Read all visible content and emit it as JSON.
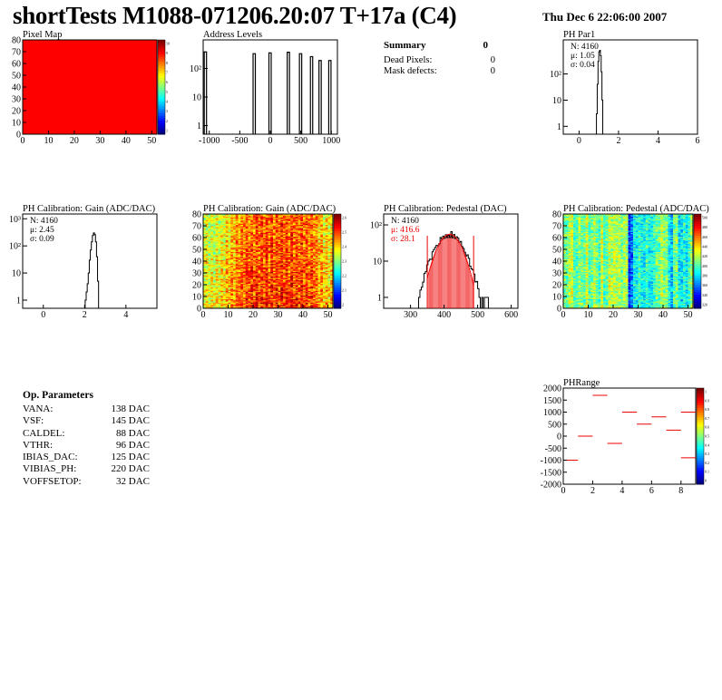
{
  "header": {
    "title": "shortTests M1088-071206.20:07 T+17a (C4)",
    "date": "Thu Dec  6 22:06:00 2007"
  },
  "summary": {
    "title": "Summary",
    "title_value": "0",
    "rows": [
      {
        "label": "Dead Pixels:",
        "value": "0"
      },
      {
        "label": "Mask defects:",
        "value": "0"
      }
    ]
  },
  "op_params": {
    "title": "Op. Parameters",
    "rows": [
      {
        "name": "VANA:",
        "value": "138 DAC"
      },
      {
        "name": "VSF:",
        "value": "145 DAC"
      },
      {
        "name": "CALDEL:",
        "value": "88 DAC"
      },
      {
        "name": "VTHR:",
        "value": "96 DAC"
      },
      {
        "name": "IBIAS_DAC:",
        "value": "125 DAC"
      },
      {
        "name": "VIBIAS_PH:",
        "value": "220 DAC"
      },
      {
        "name": "VOFFSETOP:",
        "value": "32 DAC"
      }
    ]
  },
  "colors": {
    "hist_line": "#000000",
    "fit_red": "#ee0000",
    "map_red": "#ff0000"
  },
  "chart_data": [
    {
      "id": "pixel_map",
      "type": "heatmap",
      "title": "Pixel Map",
      "xlim": [
        0,
        52
      ],
      "ylim": [
        0,
        80
      ],
      "x_ticks": [
        0,
        10,
        20,
        30,
        40,
        50
      ],
      "y_ticks": [
        0,
        10,
        20,
        30,
        40,
        50,
        60,
        70,
        80
      ],
      "z_ticks": [
        "10",
        "9",
        "8",
        "7",
        "6",
        "5",
        "4",
        "3",
        "2",
        "1"
      ],
      "fill_value": 10
    },
    {
      "id": "address_levels",
      "type": "bar",
      "title": "Address Levels",
      "xlim": [
        -1100,
        1100
      ],
      "ylim_log": [
        0.5,
        1000
      ],
      "x_ticks": [
        "-1000",
        "-500",
        "0",
        "500",
        "1000"
      ],
      "y_ticks": [
        {
          "v": 1,
          "label": "1"
        },
        {
          "v": 10,
          "label": "10"
        },
        {
          "v": 100,
          "label": "10²"
        }
      ],
      "peaks": [
        {
          "x": -1060,
          "h": 380
        },
        {
          "x": -260,
          "h": 330
        },
        {
          "x": 0,
          "h": 350
        },
        {
          "x": 300,
          "h": 370
        },
        {
          "x": 500,
          "h": 330
        },
        {
          "x": 680,
          "h": 260
        },
        {
          "x": 820,
          "h": 190
        },
        {
          "x": 980,
          "h": 190
        }
      ]
    },
    {
      "id": "ph_par1",
      "type": "bar",
      "title": "PH Par1",
      "xlim": [
        -0.8,
        6
      ],
      "ylim_log": [
        0.5,
        2000
      ],
      "x_ticks": [
        "0",
        "2",
        "4",
        "6"
      ],
      "y_ticks": [
        {
          "v": 1,
          "label": "1"
        },
        {
          "v": 10,
          "label": "10"
        },
        {
          "v": 100,
          "label": "10²"
        }
      ],
      "stats": [
        "N: 4160",
        "μ: 1.05",
        "σ: 0.04"
      ],
      "bins": [
        [
          0.86,
          0.5
        ],
        [
          0.9,
          3
        ],
        [
          0.94,
          40
        ],
        [
          0.98,
          300
        ],
        [
          1.02,
          700
        ],
        [
          1.06,
          800
        ],
        [
          1.1,
          500
        ],
        [
          1.14,
          120
        ],
        [
          1.18,
          10
        ],
        [
          1.22,
          0.5
        ]
      ]
    },
    {
      "id": "gain_dist",
      "type": "bar",
      "title": "PH Calibration: Gain (ADC/DAC)",
      "xlim": [
        -1,
        5.5
      ],
      "ylim_log": [
        0.5,
        1500
      ],
      "x_ticks": [
        "0",
        "2",
        "4"
      ],
      "y_ticks": [
        {
          "v": 1,
          "label": "1"
        },
        {
          "v": 10,
          "label": "10"
        },
        {
          "v": 100,
          "label": "10²"
        },
        {
          "v": 1000,
          "label": "10³"
        }
      ],
      "stats": [
        "N: 4160",
        "μ: 2.45",
        "σ: 0.09"
      ],
      "bins": [
        [
          2.0,
          0.5
        ],
        [
          2.05,
          1
        ],
        [
          2.1,
          2
        ],
        [
          2.15,
          4
        ],
        [
          2.2,
          10
        ],
        [
          2.25,
          30
        ],
        [
          2.3,
          70
        ],
        [
          2.35,
          140
        ],
        [
          2.4,
          240
        ],
        [
          2.45,
          300
        ],
        [
          2.5,
          260
        ],
        [
          2.55,
          140
        ],
        [
          2.6,
          40
        ],
        [
          2.65,
          5
        ],
        [
          2.7,
          0.5
        ]
      ]
    },
    {
      "id": "gain_map",
      "type": "heatmap",
      "title": "PH Calibration: Gain (ADC/DAC)",
      "xlim": [
        0,
        52
      ],
      "ylim": [
        0,
        80
      ],
      "x_ticks": [
        0,
        10,
        20,
        30,
        40,
        50
      ],
      "y_ticks": [
        0,
        10,
        20,
        30,
        40,
        50,
        60,
        70,
        80
      ],
      "z_ticks": [
        "2.6",
        "2.5",
        "2.4",
        "2.3",
        "2.2",
        "2.1",
        "2"
      ]
    },
    {
      "id": "pedestal_dist",
      "type": "bar",
      "title": "PH Calibration: Pedestal (DAC)",
      "xlim": [
        220,
        620
      ],
      "ylim_log": [
        0.5,
        200
      ],
      "x_ticks": [
        "300",
        "400",
        "500",
        "600"
      ],
      "y_ticks": [
        {
          "v": 1,
          "label": "1"
        },
        {
          "v": 10,
          "label": "10"
        },
        {
          "v": 100,
          "label": "10²"
        }
      ],
      "stats": [
        "N: 4160",
        "μ: 416.6",
        "σ: 28.1"
      ],
      "mean": 416.6,
      "sigma": 28.1,
      "cut_lines": [
        350,
        488
      ]
    },
    {
      "id": "pedestal_map",
      "type": "heatmap",
      "title": "PH Calibration: Pedestal (ADC/DAC)",
      "xlim": [
        0,
        52
      ],
      "ylim": [
        0,
        80
      ],
      "x_ticks": [
        0,
        10,
        20,
        30,
        40,
        50
      ],
      "y_ticks": [
        0,
        10,
        20,
        30,
        40,
        50,
        60,
        70,
        80
      ],
      "z_ticks": [
        "500",
        "480",
        "460",
        "440",
        "420",
        "400",
        "380",
        "360",
        "340",
        "320"
      ]
    },
    {
      "id": "ph_range",
      "type": "scatter",
      "title": "PHRange",
      "xlim": [
        0,
        9
      ],
      "ylim": [
        -2000,
        2000
      ],
      "x_ticks": [
        "0",
        "2",
        "4",
        "6",
        "8"
      ],
      "y_ticks": [
        "-2000",
        "-1500",
        "-1000",
        "-500",
        "0",
        "500",
        "1000",
        "1500",
        "2000"
      ],
      "z_ticks": [
        "1",
        "0.9",
        "0.8",
        "0.7",
        "0.6",
        "0.5",
        "0.4",
        "0.3",
        "0.2",
        "0.1",
        "0"
      ],
      "segments": [
        {
          "x": 0,
          "y": -1000
        },
        {
          "x": 1,
          "y": 0
        },
        {
          "x": 2,
          "y": 1700
        },
        {
          "x": 3,
          "y": -300
        },
        {
          "x": 4,
          "y": 1000
        },
        {
          "x": 5,
          "y": 500
        },
        {
          "x": 6,
          "y": 800
        },
        {
          "x": 7,
          "y": 250
        },
        {
          "x": 8,
          "y": 1000
        },
        {
          "x": 8,
          "y": -900
        }
      ]
    }
  ]
}
